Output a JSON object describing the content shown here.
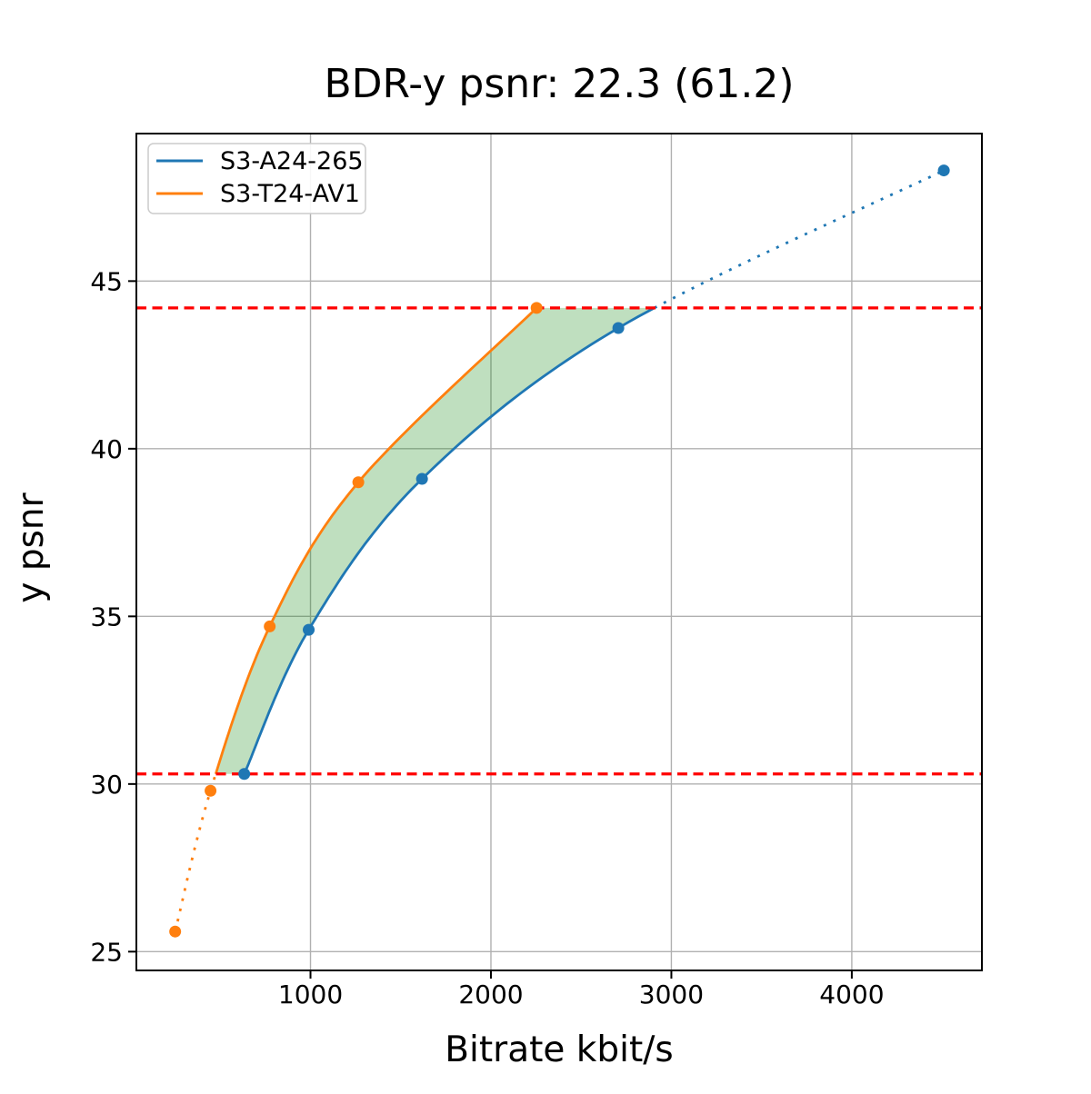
{
  "chart_data": {
    "type": "line",
    "title": "BDR-y psnr: 22.3 (61.2)",
    "xlabel": "Bitrate kbit/s",
    "ylabel": "y psnr",
    "xlim": [
      35,
      4721
    ],
    "ylim": [
      24.44,
      49.4
    ],
    "xticks": [
      1000,
      2000,
      3000,
      4000
    ],
    "yticks": [
      25,
      30,
      35,
      40,
      45
    ],
    "grid": true,
    "grid_color": "#b0b0b0",
    "legend_position": "upper left",
    "series": [
      {
        "name": "S3-A24-265",
        "color": "#1f77b4",
        "points": [
          [
            633,
            30.3
          ],
          [
            990,
            34.6
          ],
          [
            1618,
            39.1
          ],
          [
            2706,
            43.6
          ],
          [
            4510,
            48.3
          ]
        ],
        "dotted_segment": "above-upper-bound"
      },
      {
        "name": "S3-T24-AV1",
        "color": "#ff7f0e",
        "points": [
          [
            250,
            25.6
          ],
          [
            446,
            29.8
          ],
          [
            774,
            34.7
          ],
          [
            1265,
            39.0
          ],
          [
            2253,
            44.2
          ]
        ],
        "dotted_segment": "below-lower-bound"
      }
    ],
    "bounds": {
      "lower": 30.3,
      "upper": 44.2,
      "color": "#ff0000",
      "style": "dashed"
    },
    "shaded_region": {
      "color": "#008000",
      "opacity": 0.25
    }
  }
}
